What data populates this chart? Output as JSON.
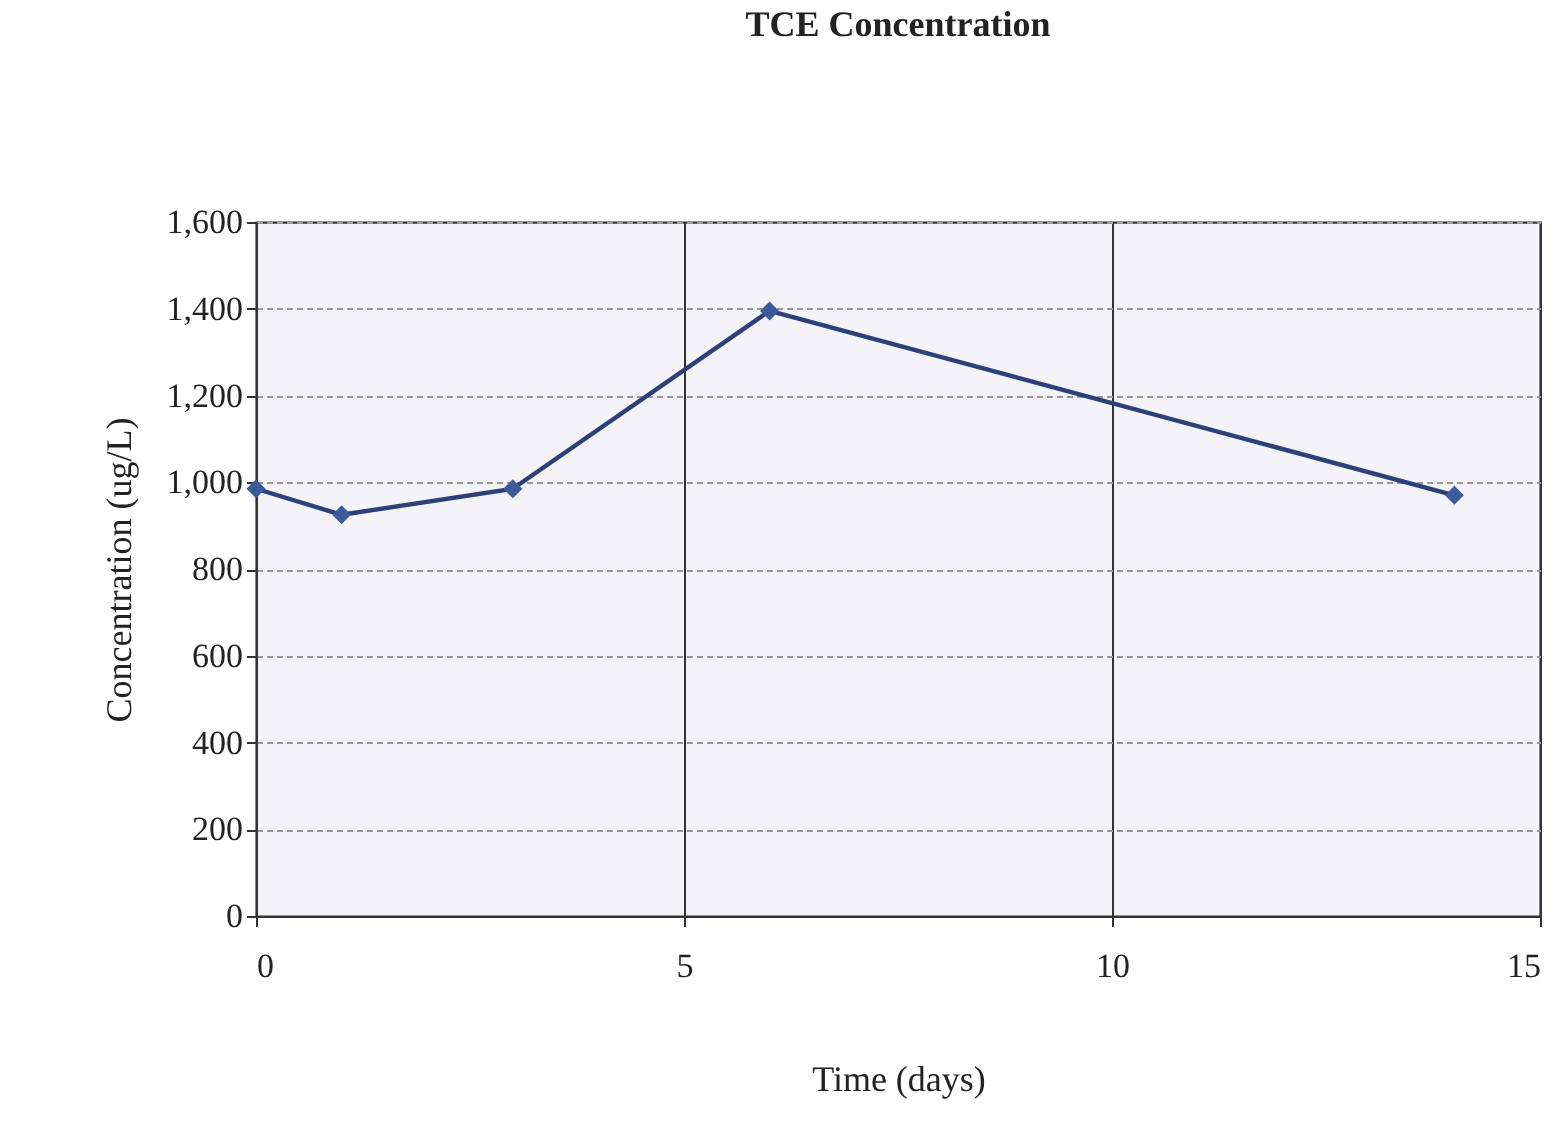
{
  "chart_data": {
    "type": "line",
    "title": "TCE Concentration",
    "xlabel": "Time (days)",
    "ylabel": "Concentration (ug/L)",
    "x": [
      0,
      1,
      3,
      6,
      14
    ],
    "series": [
      {
        "color": "#2f3f7a",
        "values": [
          985,
          925,
          985,
          1395,
          970
        ]
      }
    ],
    "xlim": [
      0,
      15
    ],
    "xticks": [
      0,
      5,
      10,
      15
    ],
    "ylim": [
      0,
      1600
    ],
    "yticks": [
      {
        "value": 0,
        "label": "0"
      },
      {
        "value": 200,
        "label": "200"
      },
      {
        "value": 400,
        "label": "400"
      },
      {
        "value": 600,
        "label": "600"
      },
      {
        "value": 800,
        "label": "800"
      },
      {
        "value": 1000,
        "label": "1,000"
      },
      {
        "value": 1200,
        "label": "1,200"
      },
      {
        "value": 1400,
        "label": "1,400"
      },
      {
        "value": 1600,
        "label": "1,600"
      }
    ],
    "grid": true,
    "marker": "diamond",
    "line_style": "solid"
  }
}
